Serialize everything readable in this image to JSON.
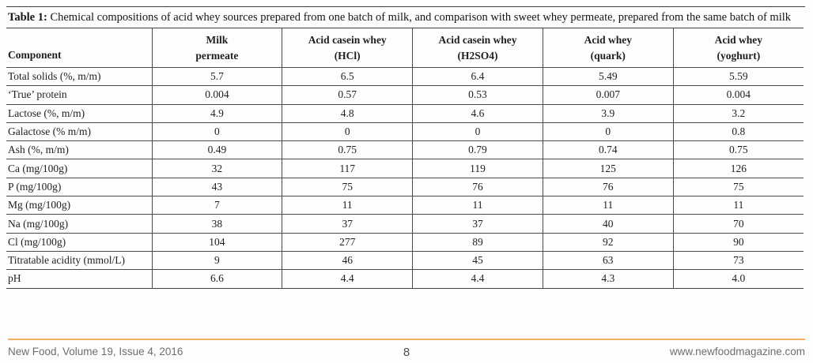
{
  "caption": {
    "label": "Table 1:",
    "text": " Chemical compositions of acid whey sources prepared from one batch of milk, and comparison with sweet whey permeate, prepared from the same batch of milk"
  },
  "table": {
    "column_headers": [
      [
        "Component"
      ],
      [
        "Milk",
        "permeate"
      ],
      [
        "Acid casein whey",
        "(HCl)"
      ],
      [
        "Acid casein whey",
        "(H2SO4)"
      ],
      [
        "Acid whey",
        "(quark)"
      ],
      [
        "Acid whey",
        "(yoghurt)"
      ]
    ],
    "rows": [
      {
        "label": "Total solids (%, m/m)",
        "values": [
          "5.7",
          "6.5",
          "6.4",
          "5.49",
          "5.59"
        ]
      },
      {
        "label": "‘True’ protein",
        "values": [
          "0.004",
          "0.57",
          "0.53",
          "0.007",
          "0.004"
        ]
      },
      {
        "label": "Lactose (%, m/m)",
        "values": [
          "4.9",
          "4.8",
          "4.6",
          "3.9",
          "3.2"
        ]
      },
      {
        "label": "Galactose (% m/m)",
        "values": [
          "0",
          "0",
          "0",
          "0",
          "0.8"
        ]
      },
      {
        "label": "Ash (%, m/m)",
        "values": [
          "0.49",
          "0.75",
          "0.79",
          "0.74",
          "0.75"
        ]
      },
      {
        "label": "Ca (mg/100g)",
        "values": [
          "32",
          "117",
          "119",
          "125",
          "126"
        ]
      },
      {
        "label": "P (mg/100g)",
        "values": [
          "43",
          "75",
          "76",
          "76",
          "75"
        ]
      },
      {
        "label": "Mg (mg/100g)",
        "values": [
          "7",
          "11",
          "11",
          "11",
          "11"
        ]
      },
      {
        "label": "Na (mg/100g)",
        "values": [
          "38",
          "37",
          "37",
          "40",
          "70"
        ]
      },
      {
        "label": "Cl (mg/100g)",
        "values": [
          "104",
          "277",
          "89",
          "92",
          "90"
        ]
      },
      {
        "label": "Titratable acidity (mmol/L)",
        "values": [
          "9",
          "46",
          "45",
          "63",
          "73"
        ]
      },
      {
        "label": "pH",
        "values": [
          "6.6",
          "4.4",
          "4.4",
          "4.3",
          "4.0"
        ]
      }
    ]
  },
  "footer": {
    "left": "New Food, Volume 19, Issue 4, 2016",
    "page_number": "8",
    "right": "www.newfoodmagazine.com"
  },
  "colors": {
    "accent_rule": "#f1b266",
    "table_border": "#4a4a4a",
    "footer_text": "#6e6e6e"
  }
}
